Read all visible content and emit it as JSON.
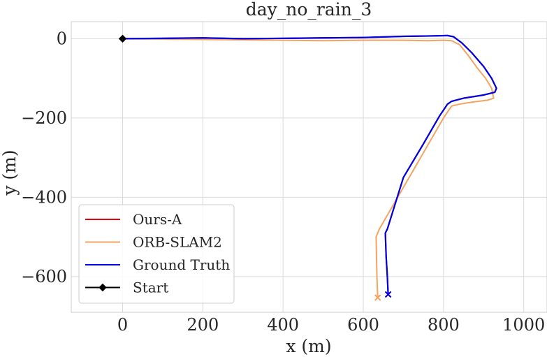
{
  "chart_data": {
    "type": "line",
    "title": "day_no_rain_3",
    "xlabel": "x (m)",
    "ylabel": "y (m)",
    "xlim": [
      -128,
      1058
    ],
    "ylim": [
      -690,
      43
    ],
    "xticks": [
      0,
      200,
      400,
      600,
      800,
      1000
    ],
    "yticks": [
      0,
      -200,
      -400,
      -600
    ],
    "xtick_labels": [
      "0",
      "200",
      "400",
      "600",
      "800",
      "1000"
    ],
    "ytick_labels": [
      "0",
      "−200",
      "−400",
      "−600"
    ],
    "grid": true,
    "legend_position": "lower-left",
    "series": [
      {
        "name": "Ours-A",
        "color": "#e8000b",
        "end_marker": "x",
        "points": [
          [
            0,
            0
          ],
          [
            100,
            1
          ],
          [
            200,
            2
          ],
          [
            300,
            0
          ],
          [
            400,
            1
          ],
          [
            500,
            2
          ],
          [
            600,
            3
          ],
          [
            700,
            6
          ],
          [
            770,
            7
          ],
          [
            810,
            8
          ],
          [
            825,
            5
          ],
          [
            845,
            -10
          ],
          [
            870,
            -35
          ],
          [
            900,
            -70
          ],
          [
            920,
            -100
          ],
          [
            932,
            -125
          ],
          [
            928,
            -135
          ],
          [
            900,
            -142
          ],
          [
            850,
            -150
          ],
          [
            820,
            -158
          ],
          [
            810,
            -165
          ],
          [
            790,
            -195
          ],
          [
            750,
            -265
          ],
          [
            700,
            -350
          ],
          [
            660,
            -480
          ],
          [
            655,
            -490
          ],
          [
            657,
            -550
          ],
          [
            660,
            -600
          ],
          [
            662,
            -645
          ]
        ]
      },
      {
        "name": "ORB-SLAM2",
        "color": "#f4a460",
        "end_marker": "x",
        "points": [
          [
            0,
            0
          ],
          [
            100,
            -1
          ],
          [
            200,
            -2
          ],
          [
            300,
            -3
          ],
          [
            400,
            -4
          ],
          [
            500,
            -5
          ],
          [
            600,
            -4
          ],
          [
            700,
            -4
          ],
          [
            760,
            -5
          ],
          [
            800,
            -4
          ],
          [
            820,
            -5
          ],
          [
            840,
            -15
          ],
          [
            860,
            -40
          ],
          [
            885,
            -75
          ],
          [
            905,
            -100
          ],
          [
            920,
            -125
          ],
          [
            925,
            -150
          ],
          [
            910,
            -155
          ],
          [
            870,
            -160
          ],
          [
            840,
            -165
          ],
          [
            820,
            -170
          ],
          [
            800,
            -200
          ],
          [
            760,
            -270
          ],
          [
            720,
            -340
          ],
          [
            680,
            -410
          ],
          [
            640,
            -480
          ],
          [
            632,
            -500
          ],
          [
            633,
            -550
          ],
          [
            634,
            -600
          ],
          [
            636,
            -653
          ]
        ]
      },
      {
        "name": "Ground Truth",
        "color": "#0000e0",
        "end_marker": "x",
        "points": [
          [
            0,
            0
          ],
          [
            100,
            1
          ],
          [
            200,
            2
          ],
          [
            300,
            0
          ],
          [
            400,
            1
          ],
          [
            500,
            2
          ],
          [
            600,
            3
          ],
          [
            700,
            6
          ],
          [
            770,
            7
          ],
          [
            810,
            8
          ],
          [
            825,
            5
          ],
          [
            845,
            -10
          ],
          [
            870,
            -35
          ],
          [
            900,
            -70
          ],
          [
            920,
            -100
          ],
          [
            932,
            -125
          ],
          [
            928,
            -135
          ],
          [
            900,
            -142
          ],
          [
            850,
            -150
          ],
          [
            820,
            -158
          ],
          [
            810,
            -165
          ],
          [
            790,
            -195
          ],
          [
            750,
            -265
          ],
          [
            700,
            -350
          ],
          [
            660,
            -480
          ],
          [
            655,
            -490
          ],
          [
            657,
            -550
          ],
          [
            660,
            -600
          ],
          [
            662,
            -645
          ]
        ]
      },
      {
        "name": "Start",
        "color": "#000000",
        "marker": "diamond",
        "points": [
          [
            0,
            0
          ]
        ]
      }
    ]
  }
}
